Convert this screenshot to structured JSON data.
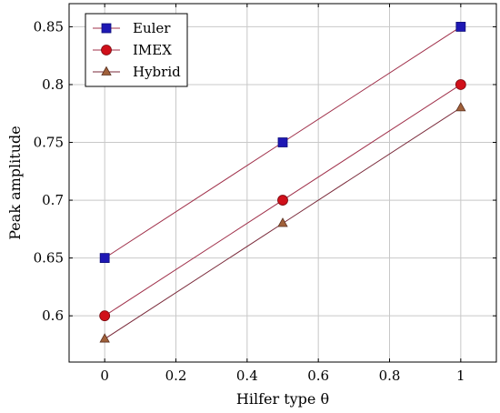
{
  "chart_data": {
    "type": "line",
    "xlabel": "Hilfer type θ",
    "ylabel": "Peak amplitude",
    "xlim": [
      -0.1,
      1.1
    ],
    "ylim": [
      0.56,
      0.87
    ],
    "x_ticks": [
      0,
      0.2,
      0.4,
      0.6,
      0.8,
      1
    ],
    "y_ticks": [
      0.6,
      0.65,
      0.7,
      0.75,
      0.8,
      0.85
    ],
    "x_tick_labels": [
      "0",
      "0.2",
      "0.4",
      "0.6",
      "0.8",
      "1"
    ],
    "y_tick_labels": [
      "0.6",
      "0.65",
      "0.7",
      "0.75",
      "0.8",
      "0.85"
    ],
    "grid": true,
    "legend_position": "top-left",
    "series": [
      {
        "name": "Euler",
        "x": [
          0,
          0.5,
          1
        ],
        "y": [
          0.65,
          0.75,
          0.85
        ],
        "marker": "square",
        "line_color": "#a0304a",
        "marker_fill": "#1e18b4",
        "marker_stroke": "#10107a"
      },
      {
        "name": "IMEX",
        "x": [
          0,
          0.5,
          1
        ],
        "y": [
          0.6,
          0.7,
          0.8
        ],
        "marker": "circle",
        "line_color": "#a0304a",
        "marker_fill": "#d0101a",
        "marker_stroke": "#7a0a10"
      },
      {
        "name": "Hybrid",
        "x": [
          0,
          0.5,
          1
        ],
        "y": [
          0.58,
          0.68,
          0.78
        ],
        "marker": "triangle",
        "line_color": "#7a2a3a",
        "marker_fill": "#a0603a",
        "marker_stroke": "#5a3020"
      }
    ]
  }
}
